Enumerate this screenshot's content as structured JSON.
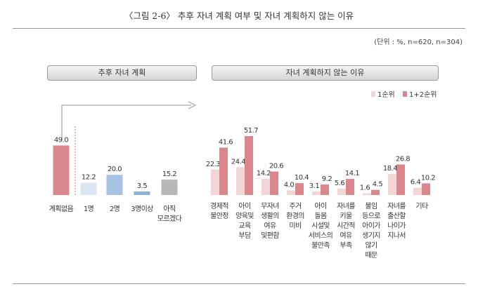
{
  "header": {
    "title": "〈그림 2-6〉 추후 자녀 계획 여부 및 자녀 계획하지 않는 이유",
    "unit": "(단위 : %, n=620, n=304)"
  },
  "colors": {
    "plan_none": "#d9868c",
    "plan_one": "#dce6f2",
    "plan_two": "#a6c3e4",
    "plan_three": "#8fb0d6",
    "plan_unknown": "#b7b7b7",
    "first_rank": "#f2d5d5",
    "first_second_rank": "#d9868c",
    "panel_border": "#9a9a9a",
    "arrow": "#b5b5b5"
  },
  "chart_data": [
    {
      "type": "bar",
      "title": "추후 자녀 계획",
      "categories": [
        "계획없음",
        "1명",
        "2명",
        "3명이상",
        "아직 모르겠다"
      ],
      "values": [
        49.0,
        12.2,
        20.0,
        3.5,
        15.2
      ],
      "value_labels": [
        "49.0",
        "12.2",
        "20.0",
        "3.5",
        "15.2"
      ],
      "ylim": [
        0,
        50
      ]
    },
    {
      "type": "bar",
      "title": "자녀 계획하지 않는 이유",
      "categories": [
        "경제적 불안정",
        "아이 양육및 교육 부담",
        "무자녀 생활의 여유 및편함",
        "주거 환경의 미비",
        "아이 돌봄 시설및 서비스의 불만족",
        "자녀를 키울 시간적 여유 부족",
        "불임 등으로 아이가 생기지 않기 때문",
        "자녀를 출산할 나이가 지나서",
        "기타"
      ],
      "series": [
        {
          "name": "1순위",
          "values": [
            22.3,
            24.4,
            14.2,
            4.0,
            3.1,
            5.6,
            1.6,
            18.4,
            6.4
          ],
          "value_labels": [
            "22.3",
            "24.4",
            "14.2",
            "4.0",
            "3.1",
            "5.6",
            "1.6",
            "18.4",
            "6.4"
          ]
        },
        {
          "name": "1+2순위",
          "values": [
            41.6,
            51.7,
            20.6,
            10.4,
            9.2,
            14.1,
            4.5,
            26.8,
            10.2
          ],
          "value_labels": [
            "41.6",
            "51.7",
            "20.6",
            "10.4",
            "9.2",
            "14.1",
            "4.5",
            "26.8",
            "10.2"
          ]
        }
      ],
      "legend": "top-right",
      "ylim": [
        0,
        55
      ]
    }
  ]
}
